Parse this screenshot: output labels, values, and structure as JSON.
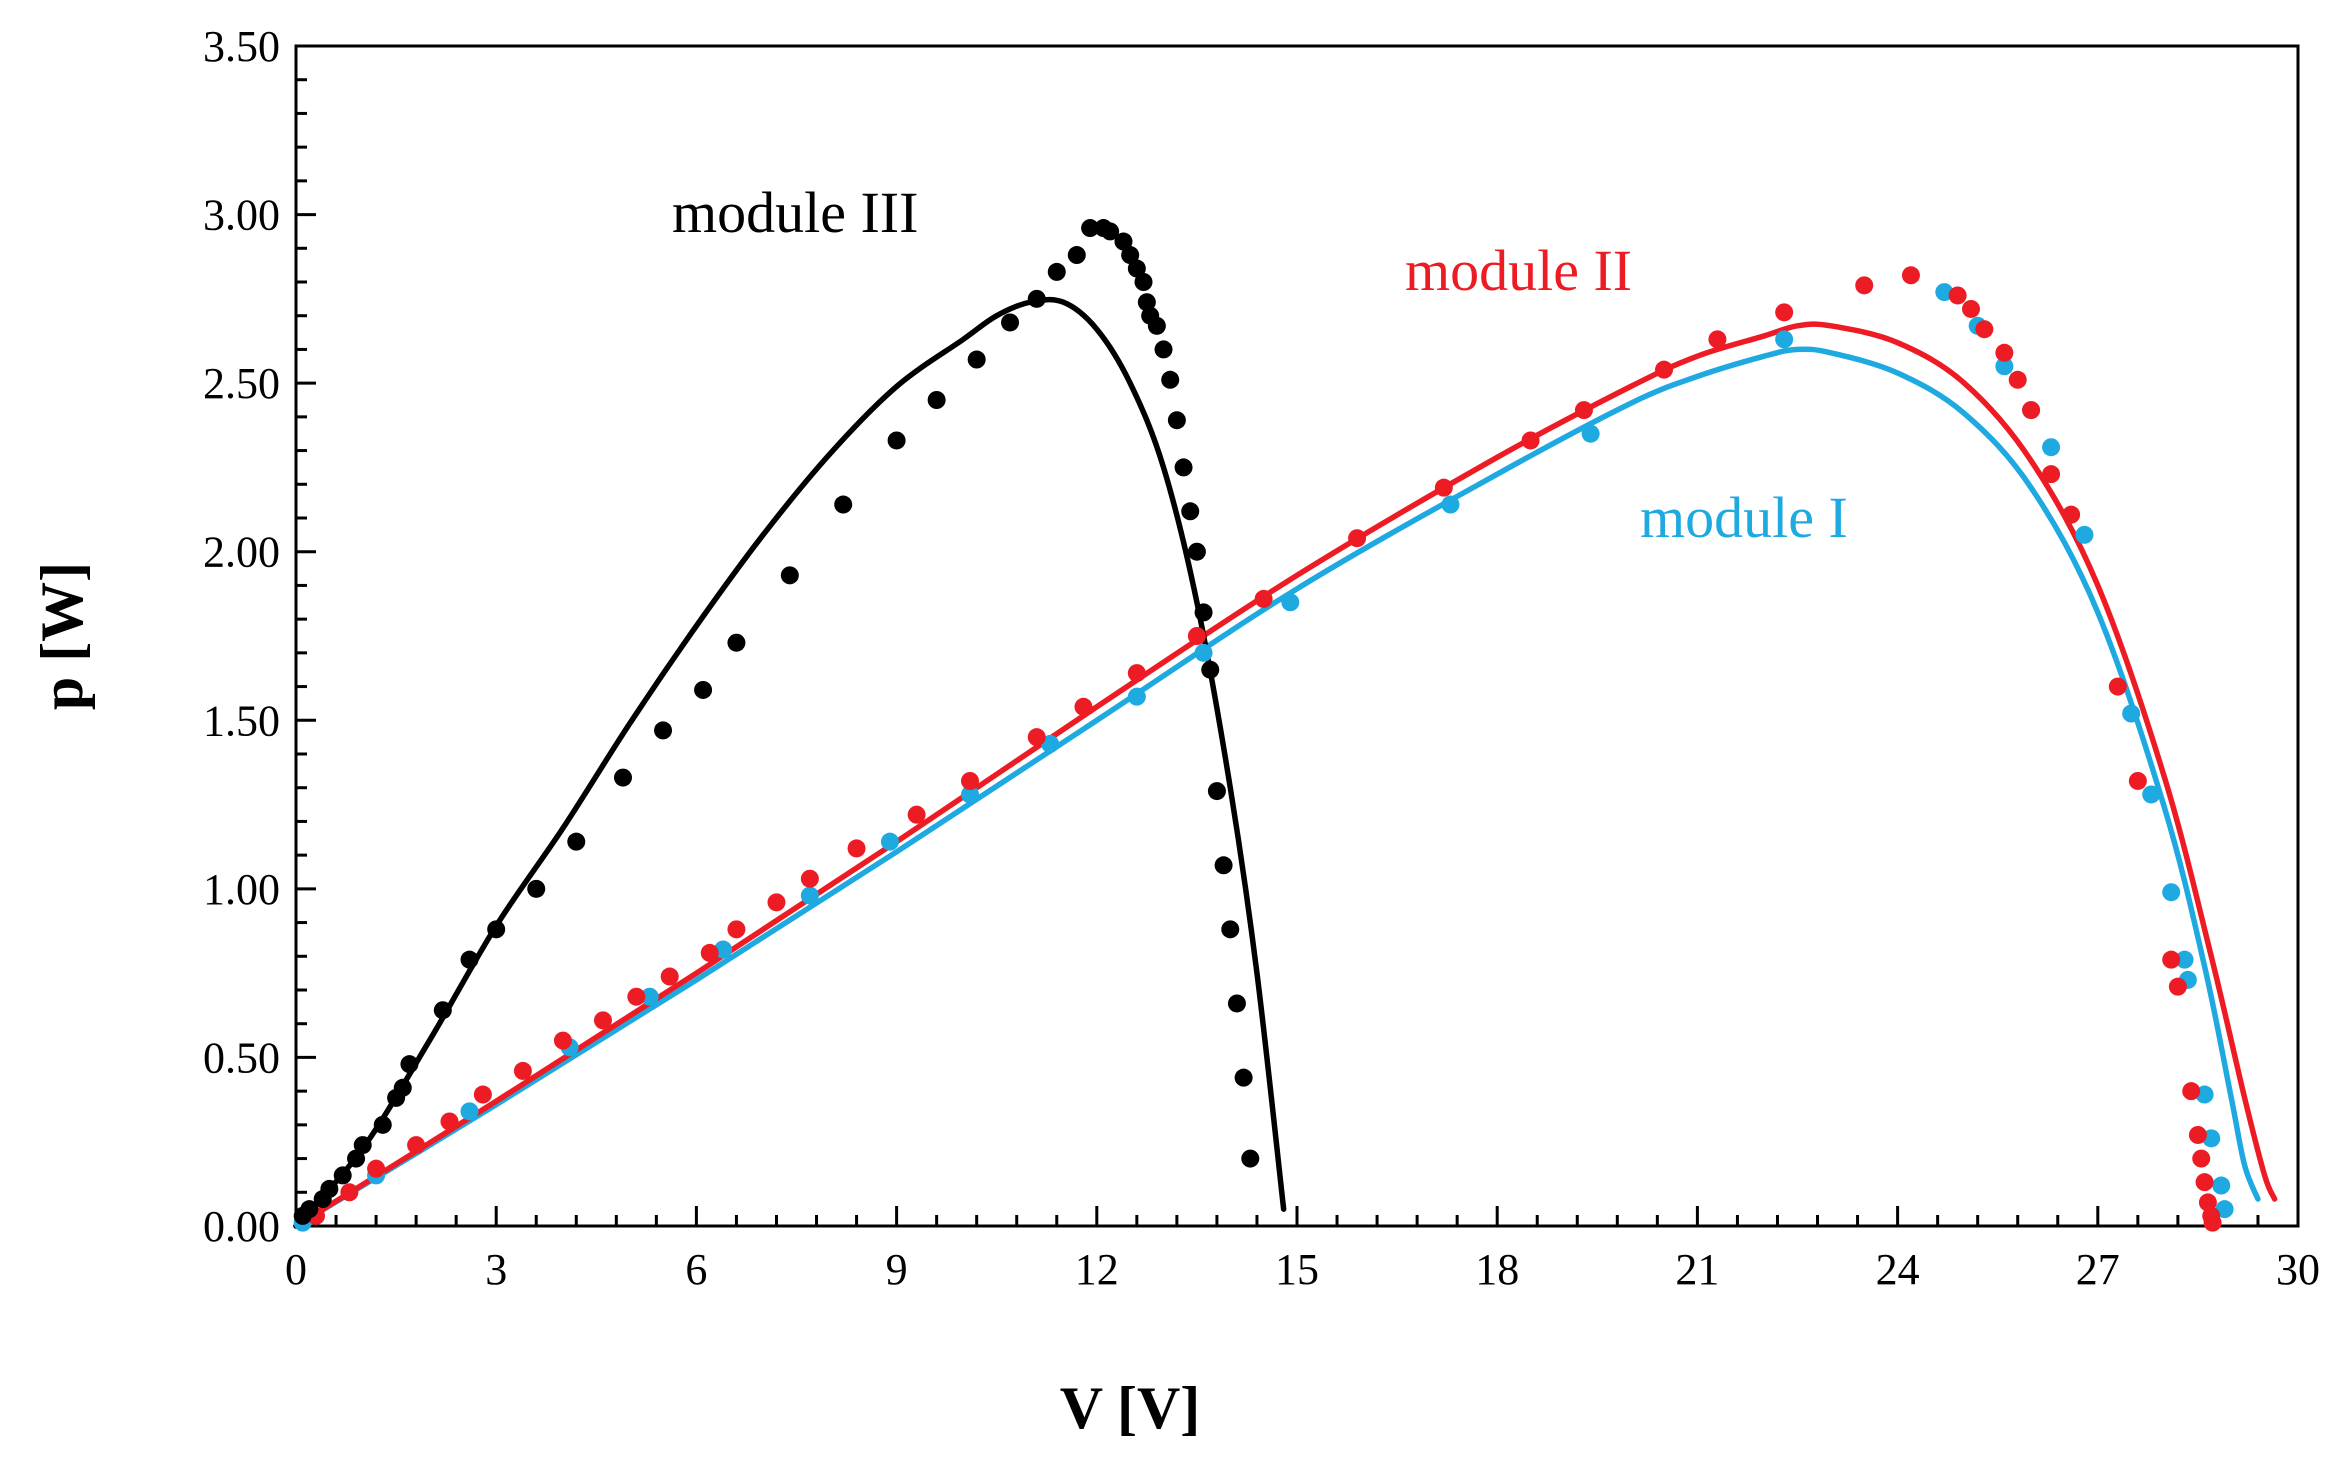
{
  "chart_data": {
    "type": "scatter",
    "xlabel": "V [V]",
    "ylabel": "p [W]",
    "xlim": [
      0,
      30
    ],
    "ylim": [
      0,
      3.5
    ],
    "x_ticks": [
      0,
      3,
      6,
      9,
      12,
      15,
      18,
      21,
      24,
      27,
      30
    ],
    "x_tick_labels": [
      "0",
      "3",
      "6",
      "9",
      "12",
      "15",
      "18",
      "21",
      "24",
      "27",
      "30"
    ],
    "y_ticks": [
      0,
      0.5,
      1,
      1.5,
      2,
      2.5,
      3,
      3.5
    ],
    "y_tick_labels": [
      "0.00",
      "0.50",
      "1.00",
      "1.50",
      "2.00",
      "2.50",
      "3.00",
      "3.50"
    ],
    "grid": false,
    "series": [
      {
        "name": "module I",
        "color": "#1ea9e1",
        "points": [
          [
            0.1,
            0.01
          ],
          [
            1.2,
            0.15
          ],
          [
            2.6,
            0.34
          ],
          [
            4.1,
            0.53
          ],
          [
            5.3,
            0.68
          ],
          [
            6.4,
            0.82
          ],
          [
            7.7,
            0.98
          ],
          [
            8.9,
            1.14
          ],
          [
            10.1,
            1.28
          ],
          [
            11.3,
            1.43
          ],
          [
            12.6,
            1.57
          ],
          [
            13.6,
            1.7
          ],
          [
            14.9,
            1.85
          ],
          [
            17.3,
            2.14
          ],
          [
            19.4,
            2.35
          ],
          [
            22.3,
            2.63
          ],
          [
            24.7,
            2.77
          ],
          [
            25.2,
            2.67
          ],
          [
            25.6,
            2.55
          ],
          [
            26.0,
            2.42
          ],
          [
            26.3,
            2.31
          ],
          [
            26.8,
            2.05
          ],
          [
            27.5,
            1.52
          ],
          [
            27.8,
            1.28
          ],
          [
            28.1,
            0.99
          ],
          [
            28.3,
            0.79
          ],
          [
            28.35,
            0.73
          ],
          [
            28.6,
            0.39
          ],
          [
            28.7,
            0.26
          ],
          [
            28.85,
            0.12
          ],
          [
            28.9,
            0.05
          ]
        ],
        "fit": [
          [
            0,
            0
          ],
          [
            3,
            0.36
          ],
          [
            6,
            0.73
          ],
          [
            9,
            1.11
          ],
          [
            12,
            1.5
          ],
          [
            15,
            1.89
          ],
          [
            18,
            2.23
          ],
          [
            20,
            2.44
          ],
          [
            21,
            2.52
          ],
          [
            22,
            2.58
          ],
          [
            22.5,
            2.6
          ],
          [
            23,
            2.59
          ],
          [
            24,
            2.53
          ],
          [
            25,
            2.41
          ],
          [
            26,
            2.19
          ],
          [
            27,
            1.82
          ],
          [
            28,
            1.24
          ],
          [
            28.6,
            0.77
          ],
          [
            29,
            0.38
          ],
          [
            29.2,
            0.18
          ],
          [
            29.4,
            0.08
          ]
        ]
      },
      {
        "name": "module II",
        "color": "#ed1c24",
        "points": [
          [
            0.3,
            0.03
          ],
          [
            0.8,
            0.1
          ],
          [
            1.2,
            0.17
          ],
          [
            1.8,
            0.24
          ],
          [
            2.3,
            0.31
          ],
          [
            2.8,
            0.39
          ],
          [
            3.4,
            0.46
          ],
          [
            4.0,
            0.55
          ],
          [
            4.6,
            0.61
          ],
          [
            5.1,
            0.68
          ],
          [
            5.6,
            0.74
          ],
          [
            6.2,
            0.81
          ],
          [
            6.6,
            0.88
          ],
          [
            7.2,
            0.96
          ],
          [
            7.7,
            1.03
          ],
          [
            8.4,
            1.12
          ],
          [
            9.3,
            1.22
          ],
          [
            10.1,
            1.32
          ],
          [
            11.1,
            1.45
          ],
          [
            11.8,
            1.54
          ],
          [
            12.6,
            1.64
          ],
          [
            13.5,
            1.75
          ],
          [
            14.5,
            1.86
          ],
          [
            15.9,
            2.04
          ],
          [
            17.2,
            2.19
          ],
          [
            18.5,
            2.33
          ],
          [
            19.3,
            2.42
          ],
          [
            20.5,
            2.54
          ],
          [
            21.3,
            2.63
          ],
          [
            22.3,
            2.71
          ],
          [
            23.5,
            2.79
          ],
          [
            24.2,
            2.82
          ],
          [
            24.9,
            2.76
          ],
          [
            25.1,
            2.72
          ],
          [
            25.3,
            2.66
          ],
          [
            25.6,
            2.59
          ],
          [
            25.8,
            2.51
          ],
          [
            26.0,
            2.42
          ],
          [
            26.3,
            2.23
          ],
          [
            26.6,
            2.11
          ],
          [
            27.3,
            1.6
          ],
          [
            27.6,
            1.32
          ],
          [
            28.1,
            0.79
          ],
          [
            28.2,
            0.71
          ],
          [
            28.4,
            0.4
          ],
          [
            28.5,
            0.27
          ],
          [
            28.55,
            0.2
          ],
          [
            28.6,
            0.13
          ],
          [
            28.65,
            0.07
          ],
          [
            28.7,
            0.03
          ],
          [
            28.72,
            0.01
          ]
        ],
        "fit": [
          [
            0,
            0
          ],
          [
            3,
            0.37
          ],
          [
            6,
            0.75
          ],
          [
            9,
            1.14
          ],
          [
            12,
            1.54
          ],
          [
            15,
            1.93
          ],
          [
            18,
            2.28
          ],
          [
            20,
            2.49
          ],
          [
            21,
            2.58
          ],
          [
            22,
            2.64
          ],
          [
            22.5,
            2.67
          ],
          [
            23,
            2.67
          ],
          [
            24,
            2.62
          ],
          [
            25,
            2.5
          ],
          [
            26,
            2.27
          ],
          [
            27,
            1.9
          ],
          [
            28,
            1.33
          ],
          [
            28.7,
            0.8
          ],
          [
            29.2,
            0.38
          ],
          [
            29.5,
            0.15
          ],
          [
            29.65,
            0.08
          ]
        ]
      },
      {
        "name": "module III",
        "color": "#000000",
        "points": [
          [
            0.1,
            0.03
          ],
          [
            0.2,
            0.05
          ],
          [
            0.4,
            0.08
          ],
          [
            0.5,
            0.11
          ],
          [
            0.7,
            0.15
          ],
          [
            0.9,
            0.2
          ],
          [
            1.0,
            0.24
          ],
          [
            1.3,
            0.3
          ],
          [
            1.5,
            0.38
          ],
          [
            1.6,
            0.41
          ],
          [
            1.7,
            0.48
          ],
          [
            2.2,
            0.64
          ],
          [
            2.6,
            0.79
          ],
          [
            3.0,
            0.88
          ],
          [
            3.6,
            1.0
          ],
          [
            4.2,
            1.14
          ],
          [
            4.9,
            1.33
          ],
          [
            5.5,
            1.47
          ],
          [
            6.1,
            1.59
          ],
          [
            6.6,
            1.73
          ],
          [
            7.4,
            1.93
          ],
          [
            8.2,
            2.14
          ],
          [
            9.0,
            2.33
          ],
          [
            9.6,
            2.45
          ],
          [
            10.2,
            2.57
          ],
          [
            10.7,
            2.68
          ],
          [
            11.1,
            2.75
          ],
          [
            11.4,
            2.83
          ],
          [
            11.7,
            2.88
          ],
          [
            11.9,
            2.96
          ],
          [
            12.1,
            2.96
          ],
          [
            12.2,
            2.95
          ],
          [
            12.4,
            2.92
          ],
          [
            12.5,
            2.88
          ],
          [
            12.6,
            2.84
          ],
          [
            12.7,
            2.8
          ],
          [
            12.75,
            2.74
          ],
          [
            12.8,
            2.7
          ],
          [
            12.9,
            2.67
          ],
          [
            13.0,
            2.6
          ],
          [
            13.1,
            2.51
          ],
          [
            13.2,
            2.39
          ],
          [
            13.3,
            2.25
          ],
          [
            13.4,
            2.12
          ],
          [
            13.5,
            2.0
          ],
          [
            13.6,
            1.82
          ],
          [
            13.7,
            1.65
          ],
          [
            13.8,
            1.29
          ],
          [
            13.9,
            1.07
          ],
          [
            14.0,
            0.88
          ],
          [
            14.1,
            0.66
          ],
          [
            14.2,
            0.44
          ],
          [
            14.3,
            0.2
          ]
        ],
        "fit": [
          [
            0,
            0
          ],
          [
            1,
            0.23
          ],
          [
            2,
            0.55
          ],
          [
            3,
            0.89
          ],
          [
            4,
            1.18
          ],
          [
            5,
            1.49
          ],
          [
            6,
            1.78
          ],
          [
            7,
            2.05
          ],
          [
            8,
            2.29
          ],
          [
            9,
            2.49
          ],
          [
            10,
            2.63
          ],
          [
            10.5,
            2.7
          ],
          [
            11,
            2.74
          ],
          [
            11.5,
            2.74
          ],
          [
            12,
            2.66
          ],
          [
            12.5,
            2.5
          ],
          [
            13,
            2.25
          ],
          [
            13.5,
            1.85
          ],
          [
            14,
            1.3
          ],
          [
            14.4,
            0.75
          ],
          [
            14.8,
            0.05
          ]
        ]
      }
    ],
    "annotations": [
      {
        "text": "module III",
        "color": "#000000"
      },
      {
        "text": "module II",
        "color": "#ed1c24"
      },
      {
        "text": "module I",
        "color": "#1ea9e1"
      }
    ]
  }
}
